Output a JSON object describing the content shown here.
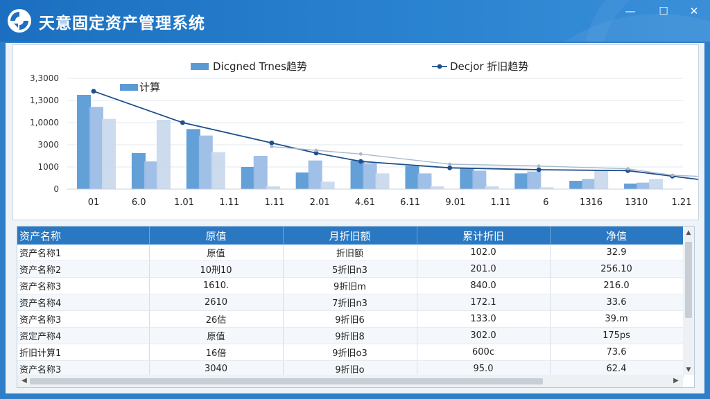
{
  "app": {
    "title": "天意固定资产管理系统"
  },
  "window": {
    "minimize": "—",
    "maximize": "☐",
    "close": "✕"
  },
  "chart_data": {
    "type": "bar",
    "legend": [
      {
        "label": "Dicgned Trnes趋势",
        "kind": "bar",
        "color": "#5b9bd5"
      },
      {
        "label": "Decjor 折旧趋势",
        "kind": "line",
        "color": "#1f4e8c"
      },
      {
        "label": "计算",
        "kind": "bar",
        "color": "#5b9bd5"
      }
    ],
    "y_tick_labels": [
      "0",
      "1000",
      "3000",
      "1,0000",
      "1,3000",
      "3,3000"
    ],
    "ylim": [
      0,
      6
    ],
    "x_tick_labels": [
      "01",
      "6.0",
      "1.01",
      "1.11",
      "1.11",
      "2.01",
      "4.61",
      "6.11",
      "9.01",
      "1.11",
      "6",
      "1316",
      "1310",
      "1.21"
    ],
    "bar_series": [
      {
        "name": "Dicgned Trnes趋势",
        "color": "#5b9bd5",
        "values": [
          5.1,
          1.95,
          3.25,
          1.2,
          0.9,
          1.55,
          1.25,
          1.15,
          0.85,
          0.45,
          0.3
        ]
      },
      {
        "name": "计算",
        "color": "#9cbde6",
        "values": [
          4.45,
          1.5,
          2.9,
          1.8,
          1.55,
          1.4,
          0.85,
          1.0,
          0.95,
          0.55,
          0.35
        ]
      },
      {
        "name": "",
        "color": "#c9d9ec",
        "values": [
          3.8,
          3.75,
          2.0,
          0.15,
          0.4,
          0.85,
          0.15,
          0.15,
          0.1,
          1.0,
          0.55
        ]
      }
    ],
    "line_series": [
      {
        "name": "Decjor 折旧趋势",
        "color": "#1f4e8c",
        "x_index": [
          0,
          2,
          4,
          5,
          6,
          8,
          10,
          12,
          13,
          14
        ],
        "values": [
          5.3,
          3.6,
          2.5,
          1.95,
          1.5,
          1.15,
          1.05,
          1.0,
          0.7,
          0.4
        ]
      },
      {
        "name": "",
        "color": "#a9b9cc",
        "x_index": [
          4,
          5,
          6,
          8,
          10,
          12,
          13,
          14
        ],
        "values": [
          2.3,
          2.1,
          1.9,
          1.35,
          1.25,
          1.1,
          0.75,
          0.65
        ]
      }
    ],
    "grid": true
  },
  "table": {
    "columns": [
      "资产名称",
      "原值",
      "月折旧额",
      "累计折旧",
      "净值"
    ],
    "rows": [
      [
        "资产名称1",
        "原值",
        "折旧额",
        "102.0",
        "32.9"
      ],
      [
        "资产名称2",
        "10刑10",
        "5折旧n3",
        "201.0",
        "256.10"
      ],
      [
        "资产名称3",
        "1610.",
        "9折旧m",
        "840.0",
        "216.0"
      ],
      [
        "资产名称4",
        "2610",
        "7折旧n3",
        "172.1",
        "33.6"
      ],
      [
        "资产名称3",
        "26估",
        "9折旧6",
        "133.0",
        "39.m"
      ],
      [
        "资定产称4",
        "原值",
        "9折旧8",
        "302.0",
        "175ps"
      ],
      [
        "折旧计算1",
        "16倍",
        "9折旧o3",
        "600c",
        "73.6"
      ],
      [
        "资产名称3",
        "3040",
        "9折旧o",
        "95.0",
        "62.4"
      ]
    ]
  }
}
